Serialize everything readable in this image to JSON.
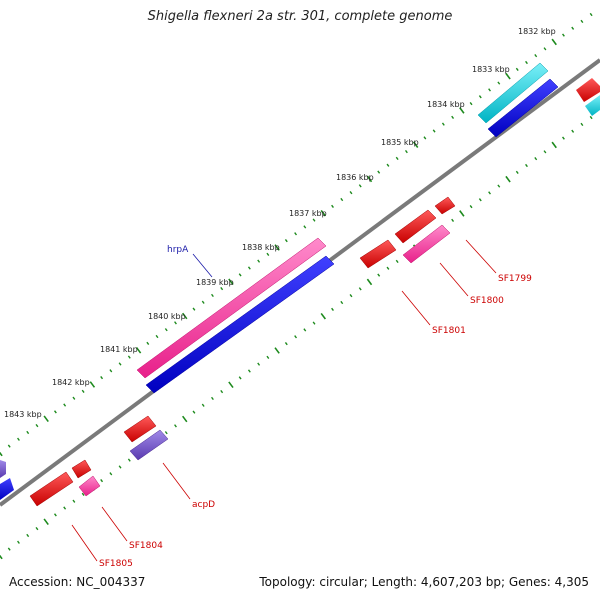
{
  "title": "Shigella flexneri 2a str. 301, complete genome",
  "footer": {
    "accession": "Accession: NC_004337",
    "topology": "Topology: circular; Length: 4,607,203 bp; Genes: 4,305"
  },
  "colors": {
    "backbone": "#808080",
    "tick": "#1d8a1d",
    "forward_gene_label": "#1a1aa8",
    "reverse_gene_label": "#cc0000",
    "cds_red": "#e00000",
    "cds_pink": "#ff3fa5",
    "cds_blue": "#1010d8",
    "cds_cyan": "#10c8d8",
    "cds_purple": "#7a5acc"
  },
  "scale_labels": [
    "1832 kbp",
    "1833 kbp",
    "1834 kbp",
    "1835 kbp",
    "1836 kbp",
    "1837 kbp",
    "1838 kbp",
    "1839 kbp",
    "1840 kbp",
    "1841 kbp",
    "1842 kbp",
    "1843 kbp"
  ],
  "gene_labels": {
    "hrpA": "hrpA",
    "SF1799": "SF1799",
    "SF1800": "SF1800",
    "SF1801": "SF1801",
    "acpD": "acpD",
    "SF1804": "SF1804",
    "SF1805": "SF1805"
  }
}
